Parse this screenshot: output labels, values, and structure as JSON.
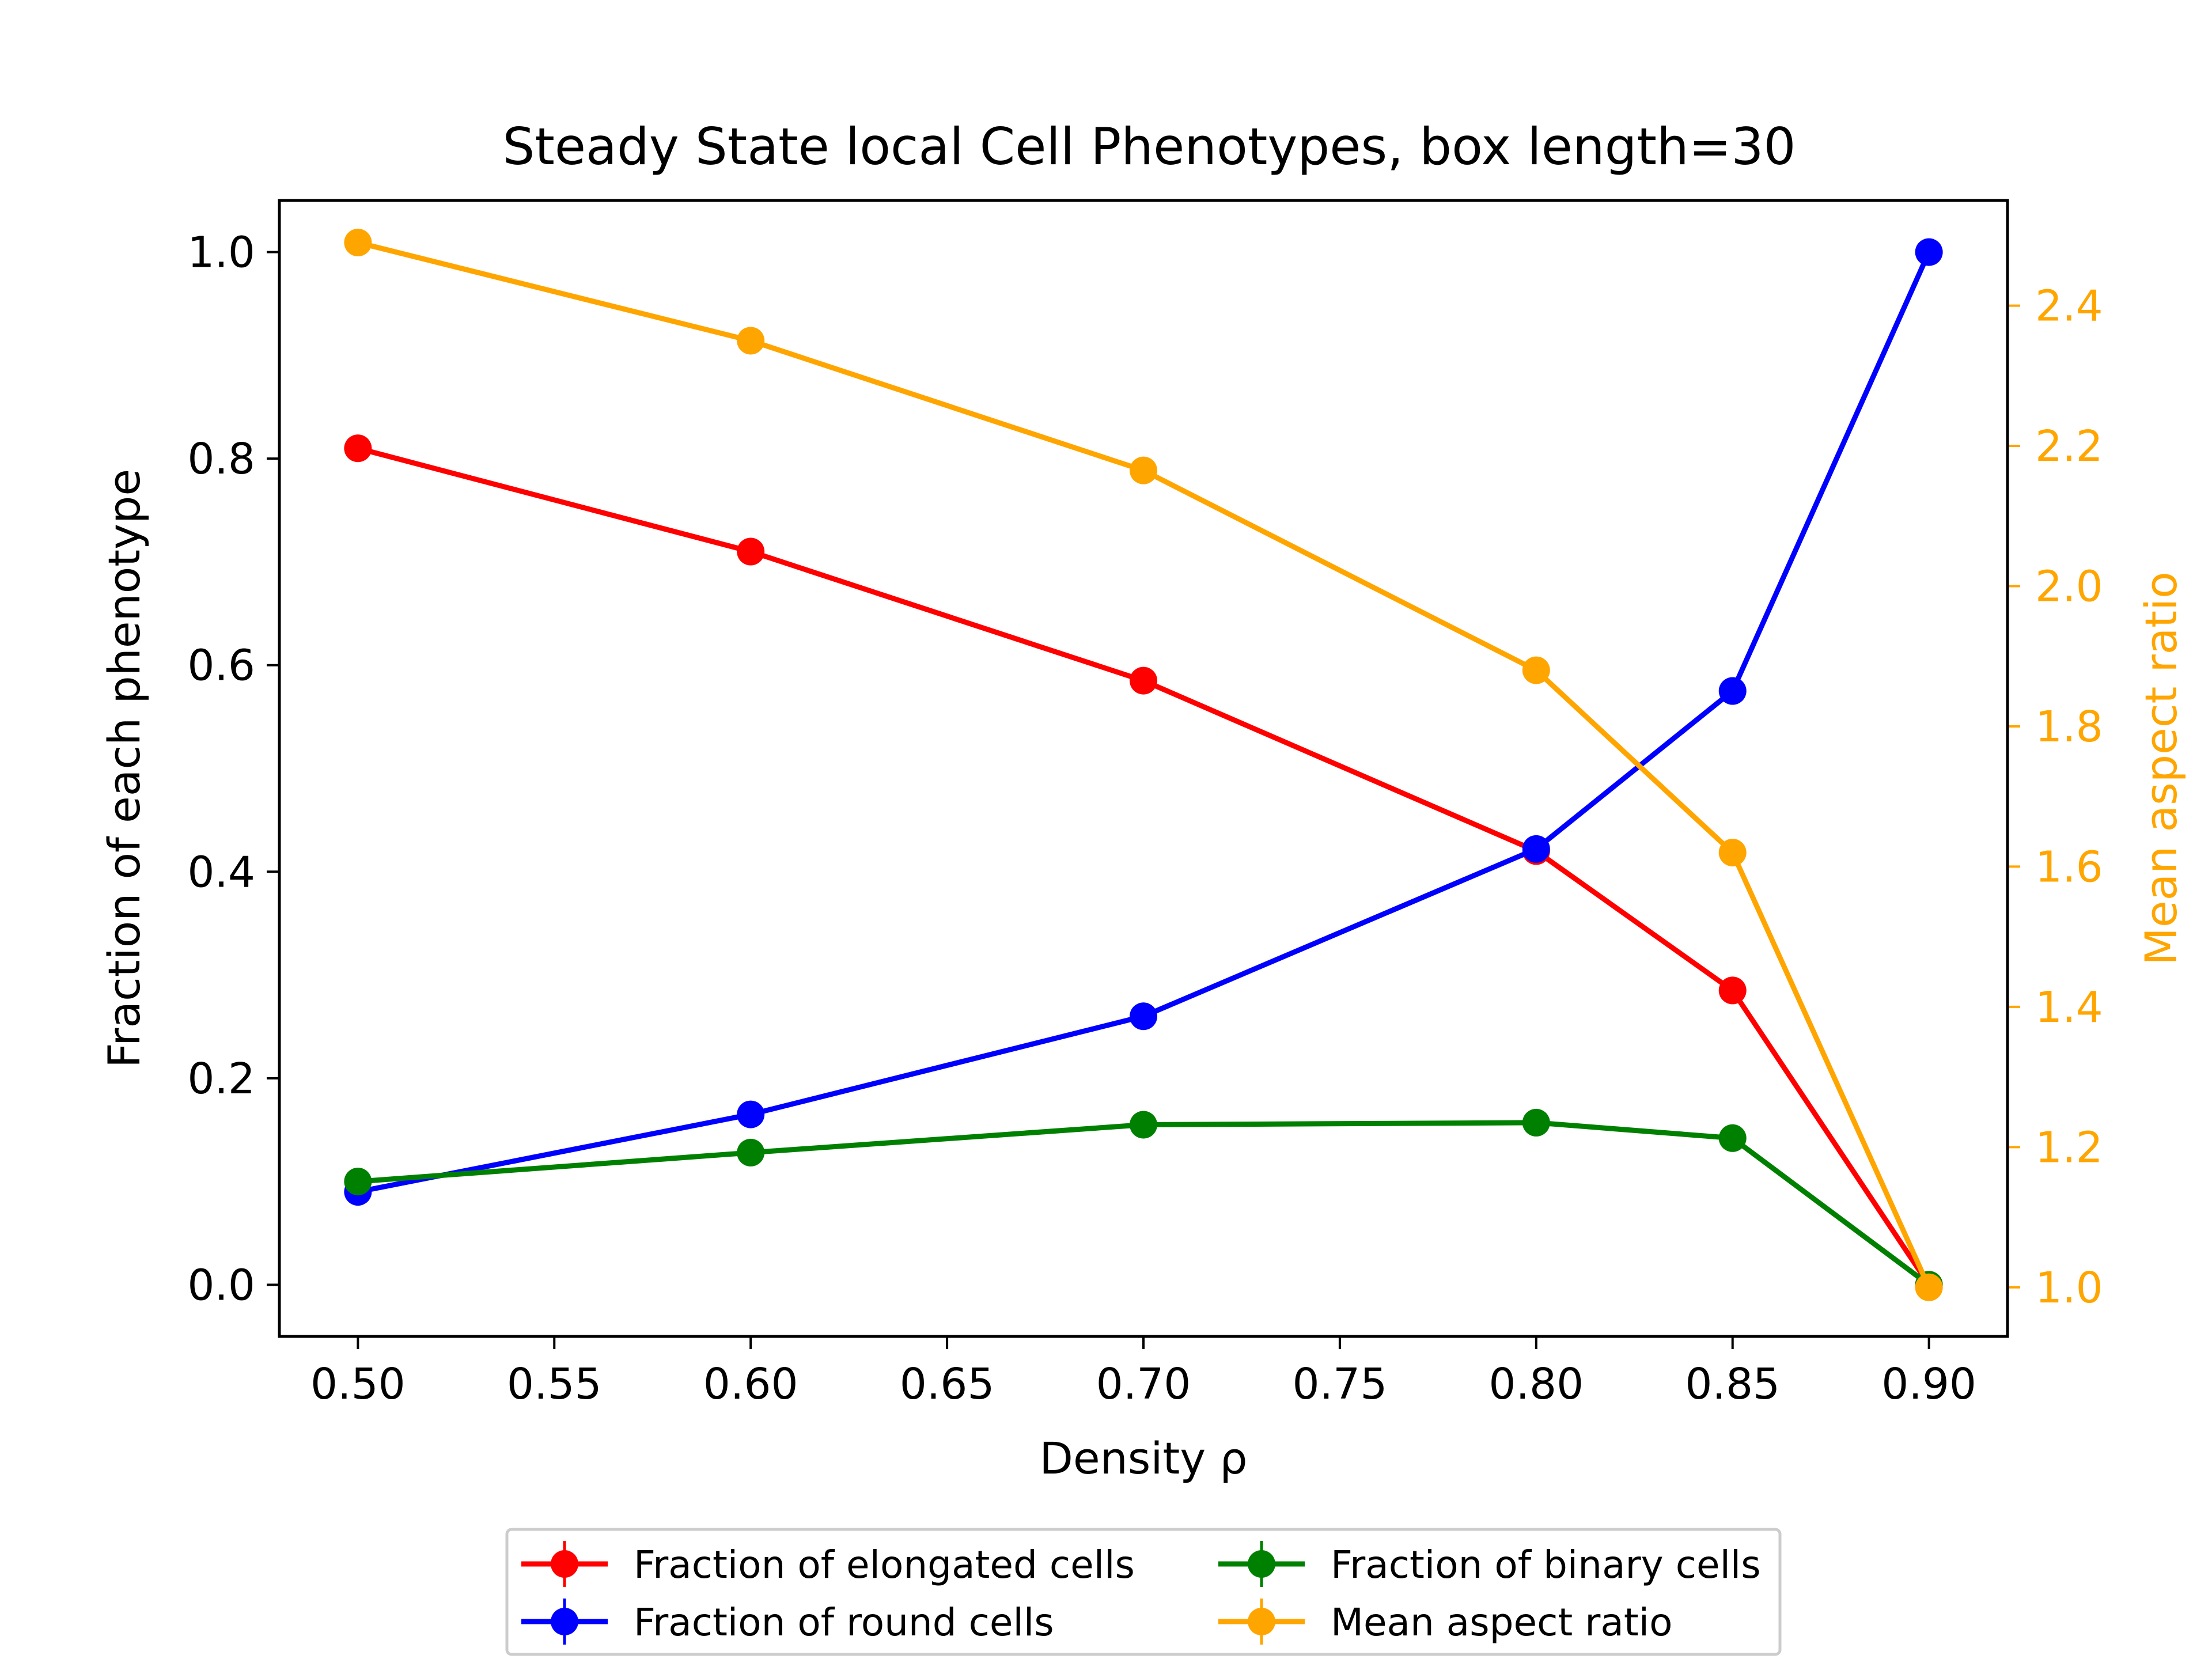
{
  "chart_data": {
    "type": "line",
    "title": "Steady State local Cell Phenotypes, box length=30",
    "xlabel": "Density ρ",
    "ylabel": "Fraction of each phenotype",
    "y2label": "Mean aspect ratio",
    "x": [
      0.5,
      0.6,
      0.7,
      0.8,
      0.85,
      0.9
    ],
    "xlim": [
      0.48,
      0.92
    ],
    "ylim": [
      -0.05,
      1.05
    ],
    "y2lim": [
      0.93,
      2.55
    ],
    "xticks": [
      "0.50",
      "0.55",
      "0.60",
      "0.65",
      "0.70",
      "0.75",
      "0.80",
      "0.85",
      "0.90"
    ],
    "yticks": [
      "0.0",
      "0.2",
      "0.4",
      "0.6",
      "0.8",
      "1.0"
    ],
    "y2ticks": [
      "1.0",
      "1.2",
      "1.4",
      "1.6",
      "1.8",
      "2.0",
      "2.2",
      "2.4"
    ],
    "grid": false,
    "legend_position": "below plot, two columns",
    "series": [
      {
        "name": "Fraction of elongated cells",
        "axis": "left",
        "color": "#ff0000",
        "values": [
          0.81,
          0.71,
          0.585,
          0.42,
          0.285,
          0.0
        ]
      },
      {
        "name": "Fraction of round cells",
        "axis": "left",
        "color": "#0000ff",
        "values": [
          0.09,
          0.165,
          0.26,
          0.422,
          0.575,
          1.0
        ]
      },
      {
        "name": "Fraction of binary cells",
        "axis": "left",
        "color": "#008000",
        "values": [
          0.1,
          0.128,
          0.155,
          0.157,
          0.142,
          0.0
        ]
      },
      {
        "name": "Mean aspect ratio",
        "axis": "right",
        "color": "#ffa500",
        "values": [
          2.49,
          2.35,
          2.165,
          1.88,
          1.62,
          1.0
        ]
      }
    ]
  }
}
